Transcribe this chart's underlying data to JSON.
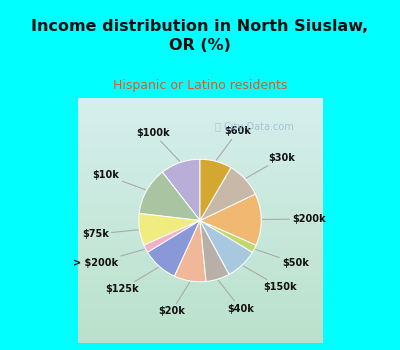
{
  "title": "Income distribution in North Siuslaw,\nOR (%)",
  "subtitle": "Hispanic or Latino residents",
  "watermark": "ⓘ City-Data.com",
  "labels": [
    "$100k",
    "$10k",
    "$75k",
    "> $200k",
    "$125k",
    "$20k",
    "$40k",
    "$150k",
    "$50k",
    "$200k",
    "$30k",
    "$60k"
  ],
  "values": [
    10,
    12,
    8,
    2,
    9,
    8,
    6,
    8,
    2,
    13,
    9,
    8
  ],
  "colors": [
    "#b8aed8",
    "#a8c4a0",
    "#f0ec80",
    "#f0b0c8",
    "#8898d8",
    "#f0b898",
    "#b8b0a8",
    "#a8c8e0",
    "#c0d870",
    "#f0b870",
    "#c8b8a8",
    "#d4a830"
  ],
  "background_top": "#00ffff",
  "background_pie_top": "#d8f0e8",
  "background_pie_bottom": "#c0e8d8",
  "title_color": "#101010",
  "subtitle_color": "#e05828",
  "startangle": 90,
  "pie_area": [
    0.08,
    0.02,
    0.84,
    0.7
  ]
}
